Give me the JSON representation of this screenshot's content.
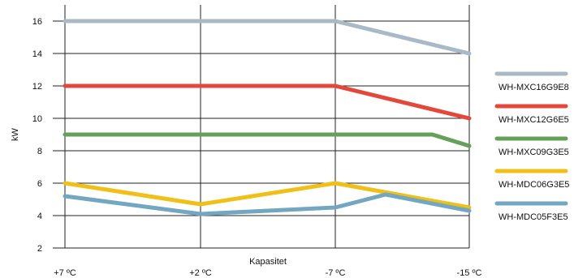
{
  "chart_data": {
    "type": "line",
    "xlabel": "Kapasitet",
    "ylabel": "kW",
    "ylim": [
      2,
      17
    ],
    "yticks": [
      2,
      4,
      6,
      8,
      10,
      12,
      14,
      16
    ],
    "categories": [
      "+7 ºC",
      "+2 ºC",
      "-7 ºC",
      "-15 ºC"
    ],
    "grid": true,
    "legend_position": "right",
    "series": [
      {
        "name": "WH-MXC16G9E8",
        "color": "#a9b9c6",
        "points": [
          [
            "+7 ºC",
            16
          ],
          [
            "+2 ºC",
            16
          ],
          [
            "-7 ºC",
            16
          ],
          [
            "-15 ºC",
            14
          ]
        ]
      },
      {
        "name": "WH-MXC12G6E5",
        "color": "#e5483b",
        "points": [
          [
            "+7 ºC",
            12
          ],
          [
            "+2 ºC",
            12
          ],
          [
            "-7 ºC",
            12
          ],
          [
            "-15 ºC",
            10
          ]
        ]
      },
      {
        "name": "WH-MXC09G3E5",
        "color": "#64a05a",
        "points": [
          [
            "+7 ºC",
            9
          ],
          [
            "+2 ºC",
            9
          ],
          [
            "-7 ºC",
            9
          ],
          [
            -12.8,
            9
          ],
          [
            "-15 ºC",
            8.3
          ]
        ]
      },
      {
        "name": "WH-MDC06G3E5",
        "color": "#f0c018",
        "points": [
          [
            "+7 ºC",
            6
          ],
          [
            "+2 ºC",
            4.7
          ],
          [
            "-7 ºC",
            6
          ],
          [
            "-15 ºC",
            4.5
          ]
        ]
      },
      {
        "name": "WH-MDC05F3E5",
        "color": "#73a6c0",
        "points": [
          [
            "+7 ºC",
            5.2
          ],
          [
            "+2 ºC",
            4.1
          ],
          [
            "-7 ºC",
            4.5
          ],
          [
            -10,
            5.3
          ],
          [
            "-15 ºC",
            4.3
          ]
        ]
      }
    ]
  }
}
